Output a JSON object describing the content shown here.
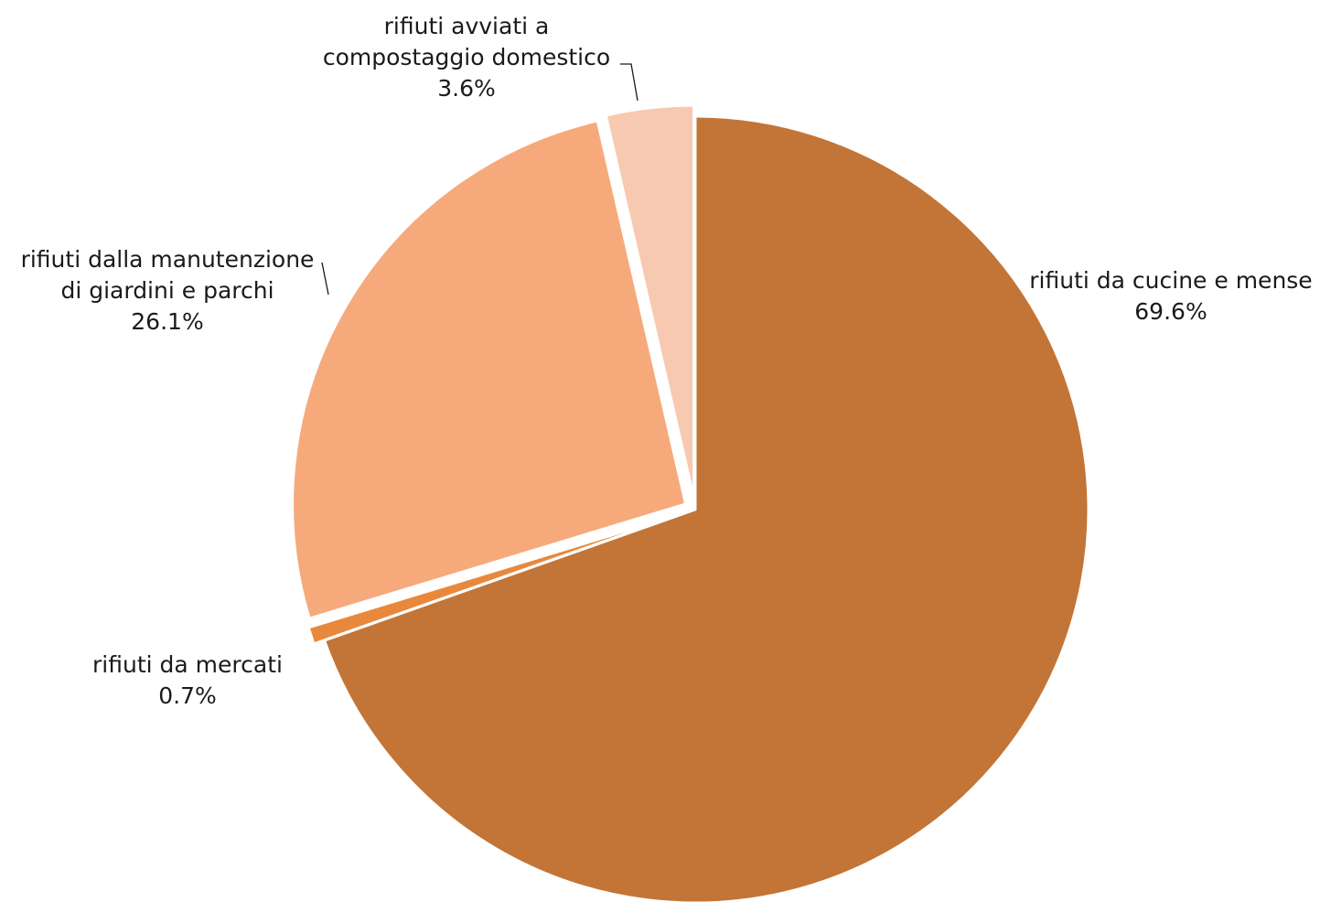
{
  "chart_data": {
    "type": "pie",
    "title": "",
    "start_angle_deg": 0,
    "direction": "clockwise",
    "slices": [
      {
        "name": "rifiuti da cucine e mense",
        "label_lines": [
          "rifiuti da cucine e mense"
        ],
        "value": 69.6,
        "display": "69.6%",
        "color": "#C27537",
        "exploded": false
      },
      {
        "name": "rifiuti da mercati",
        "label_lines": [
          "rifiuti da mercati"
        ],
        "value": 0.7,
        "display": "0.7%",
        "color": "#E8883D",
        "exploded": true
      },
      {
        "name": "rifiuti dalla manutenzione di giardini e parchi",
        "label_lines": [
          "rifiuti dalla manutenzione",
          "di giardini e parchi"
        ],
        "value": 26.1,
        "display": "26.1%",
        "color": "#F6AA7B",
        "exploded": true
      },
      {
        "name": "rifiuti avviati a compostaggio domestico",
        "label_lines": [
          "rifiuti avviati a",
          "compostaggio domestico"
        ],
        "value": 3.6,
        "display": "3.6%",
        "color": "#F8C9B1",
        "exploded": true
      }
    ]
  }
}
